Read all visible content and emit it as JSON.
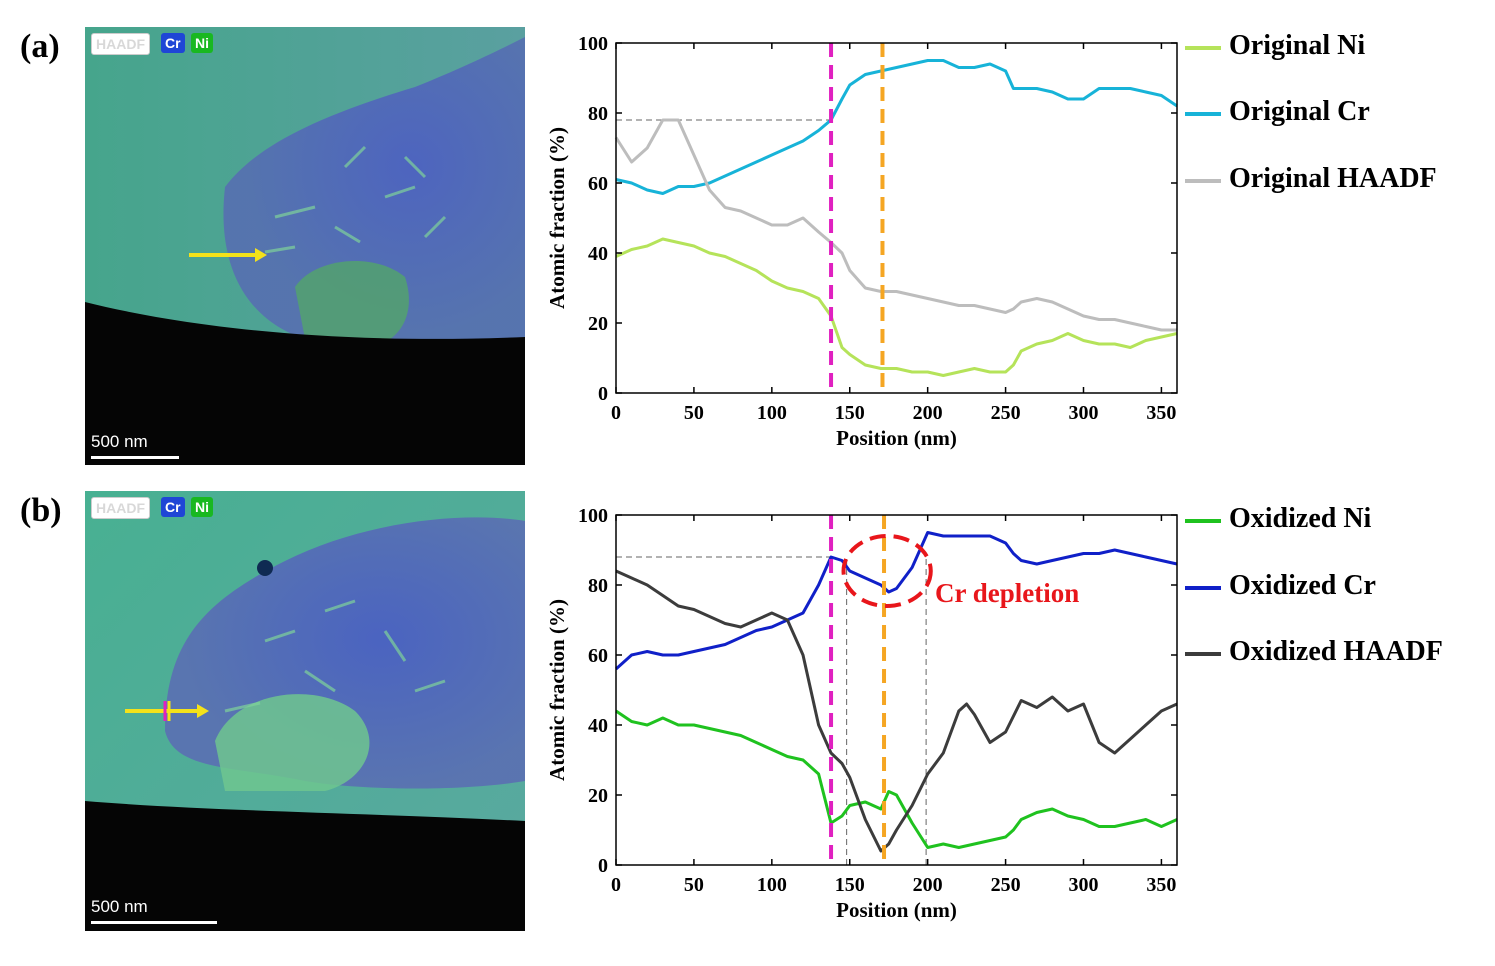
{
  "panels": [
    {
      "label": "(a)",
      "micrograph": {
        "legend": [
          "HAADF",
          "Cr",
          "Ni"
        ],
        "scale_bar": "500 nm"
      },
      "legend_items": [
        {
          "name": "Original Ni",
          "color": "#b5e35a"
        },
        {
          "name": "Original Cr",
          "color": "#17b3d8"
        },
        {
          "name": "Original HAADF",
          "color": "#bdbdbd"
        }
      ]
    },
    {
      "label": "(b)",
      "micrograph": {
        "legend": [
          "HAADF",
          "Cr",
          "Ni"
        ],
        "scale_bar": "500 nm"
      },
      "legend_items": [
        {
          "name": "Oxidized Ni",
          "color": "#1fc21f"
        },
        {
          "name": "Oxidized Cr",
          "color": "#1020c8"
        },
        {
          "name": "Oxidized HAADF",
          "color": "#3c3c3c"
        }
      ],
      "annotation": "Cr depletion"
    }
  ],
  "chart_data": [
    {
      "type": "line",
      "xlabel": "Position (nm)",
      "ylabel": "Atomic fraction (%)",
      "xlim": [
        0,
        360
      ],
      "ylim": [
        0,
        100
      ],
      "xticks": [
        0,
        50,
        100,
        150,
        200,
        250,
        300,
        350
      ],
      "yticks": [
        0,
        20,
        40,
        60,
        80,
        100
      ],
      "vlines": [
        {
          "x": 138,
          "color": "#e020c0"
        },
        {
          "x": 171,
          "color": "#f5a623"
        }
      ],
      "ref_line": {
        "y": 78,
        "x_to": 138
      },
      "series": [
        {
          "name": "Original Ni",
          "color": "#b5e35a",
          "x": [
            0,
            10,
            20,
            30,
            40,
            50,
            60,
            70,
            80,
            90,
            100,
            110,
            120,
            130,
            138,
            145,
            150,
            160,
            170,
            180,
            190,
            200,
            210,
            220,
            230,
            240,
            250,
            255,
            260,
            270,
            280,
            290,
            300,
            310,
            320,
            330,
            340,
            350,
            360
          ],
          "y": [
            39,
            41,
            42,
            44,
            43,
            42,
            40,
            39,
            37,
            35,
            32,
            30,
            29,
            27,
            22,
            13,
            11,
            8,
            7,
            7,
            6,
            6,
            5,
            6,
            7,
            6,
            6,
            8,
            12,
            14,
            15,
            17,
            15,
            14,
            14,
            13,
            15,
            16,
            17
          ]
        },
        {
          "name": "Original Cr",
          "color": "#17b3d8",
          "x": [
            0,
            10,
            20,
            30,
            40,
            50,
            60,
            70,
            80,
            90,
            100,
            110,
            120,
            130,
            138,
            145,
            150,
            160,
            170,
            180,
            190,
            200,
            210,
            220,
            230,
            240,
            250,
            255,
            260,
            270,
            280,
            290,
            300,
            310,
            320,
            330,
            340,
            350,
            360
          ],
          "y": [
            61,
            60,
            58,
            57,
            59,
            59,
            60,
            62,
            64,
            66,
            68,
            70,
            72,
            75,
            78,
            84,
            88,
            91,
            92,
            93,
            94,
            95,
            95,
            93,
            93,
            94,
            92,
            87,
            87,
            87,
            86,
            84,
            84,
            87,
            87,
            87,
            86,
            85,
            82
          ]
        },
        {
          "name": "Original HAADF",
          "color": "#bdbdbd",
          "x": [
            0,
            10,
            20,
            30,
            40,
            50,
            60,
            70,
            80,
            90,
            100,
            110,
            120,
            130,
            138,
            145,
            150,
            160,
            170,
            180,
            190,
            200,
            210,
            220,
            230,
            240,
            250,
            255,
            260,
            270,
            280,
            290,
            300,
            310,
            320,
            330,
            340,
            350,
            360
          ],
          "y": [
            73,
            66,
            70,
            78,
            78,
            68,
            58,
            53,
            52,
            50,
            48,
            48,
            50,
            46,
            43,
            40,
            35,
            30,
            29,
            29,
            28,
            27,
            26,
            25,
            25,
            24,
            23,
            24,
            26,
            27,
            26,
            24,
            22,
            21,
            21,
            20,
            19,
            18,
            18
          ]
        }
      ]
    },
    {
      "type": "line",
      "xlabel": "Position (nm)",
      "ylabel": "Atomic fraction (%)",
      "xlim": [
        0,
        360
      ],
      "ylim": [
        0,
        100
      ],
      "xticks": [
        0,
        50,
        100,
        150,
        200,
        250,
        300,
        350
      ],
      "yticks": [
        0,
        20,
        40,
        60,
        80,
        100
      ],
      "vlines": [
        {
          "x": 138,
          "color": "#e020c0"
        },
        {
          "x": 172,
          "color": "#f5a623"
        }
      ],
      "ref_line": {
        "y": 88,
        "x_to": 138
      },
      "guide_lines": [
        148,
        199
      ],
      "annotation_ellipse": {
        "cx": 174,
        "cy": 84,
        "rx": 28,
        "ry": 10,
        "color": "#e8161b"
      },
      "series": [
        {
          "name": "Oxidized Ni",
          "color": "#1fc21f",
          "x": [
            0,
            10,
            20,
            30,
            40,
            50,
            60,
            70,
            80,
            90,
            100,
            110,
            120,
            130,
            138,
            145,
            150,
            160,
            170,
            175,
            180,
            190,
            200,
            210,
            220,
            230,
            240,
            250,
            255,
            260,
            270,
            280,
            290,
            300,
            310,
            320,
            330,
            340,
            350,
            360
          ],
          "y": [
            44,
            41,
            40,
            42,
            40,
            40,
            39,
            38,
            37,
            35,
            33,
            31,
            30,
            26,
            12,
            14,
            17,
            18,
            16,
            21,
            20,
            12,
            5,
            6,
            5,
            6,
            7,
            8,
            10,
            13,
            15,
            16,
            14,
            13,
            11,
            11,
            12,
            13,
            11,
            13
          ]
        },
        {
          "name": "Oxidized Cr",
          "color": "#1020c8",
          "x": [
            0,
            10,
            20,
            30,
            40,
            50,
            60,
            70,
            80,
            90,
            100,
            110,
            120,
            130,
            138,
            145,
            150,
            160,
            170,
            175,
            180,
            190,
            200,
            210,
            220,
            230,
            240,
            250,
            255,
            260,
            270,
            280,
            290,
            300,
            310,
            320,
            330,
            340,
            350,
            360
          ],
          "y": [
            56,
            60,
            61,
            60,
            60,
            61,
            62,
            63,
            65,
            67,
            68,
            70,
            72,
            80,
            88,
            87,
            84,
            82,
            80,
            78,
            79,
            85,
            95,
            94,
            94,
            94,
            94,
            92,
            89,
            87,
            86,
            87,
            88,
            89,
            89,
            90,
            89,
            88,
            87,
            86
          ]
        },
        {
          "name": "Oxidized HAADF",
          "color": "#3c3c3c",
          "x": [
            0,
            10,
            20,
            30,
            40,
            50,
            60,
            70,
            80,
            90,
            100,
            110,
            120,
            130,
            138,
            145,
            150,
            160,
            170,
            175,
            180,
            190,
            200,
            210,
            220,
            225,
            230,
            240,
            250,
            260,
            270,
            280,
            290,
            300,
            310,
            320,
            330,
            340,
            350,
            360
          ],
          "y": [
            84,
            82,
            80,
            77,
            74,
            73,
            71,
            69,
            68,
            70,
            72,
            70,
            60,
            40,
            32,
            29,
            25,
            13,
            4,
            6,
            10,
            17,
            26,
            32,
            44,
            46,
            43,
            35,
            38,
            47,
            45,
            48,
            44,
            46,
            35,
            32,
            36,
            40,
            44,
            46
          ]
        }
      ]
    }
  ]
}
